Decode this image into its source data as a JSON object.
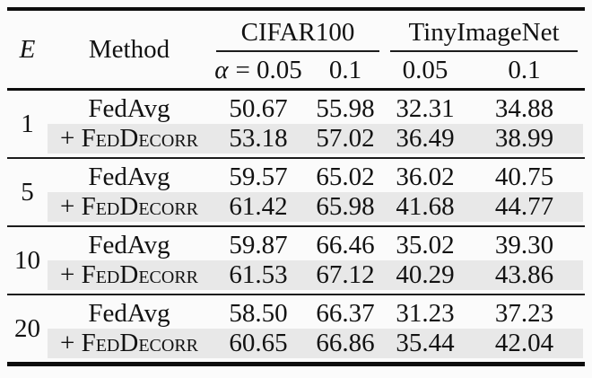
{
  "table": {
    "e_header": "E",
    "method_header": "Method",
    "group_headers": [
      "CIFAR100",
      "TinyImageNet"
    ],
    "col_subheaders": {
      "c1_symbol": "α",
      "c1_value": "= 0.05",
      "c2": "0.1",
      "c3": "0.05",
      "c4": "0.1"
    },
    "groups": [
      {
        "e": "1",
        "rows": [
          {
            "method": "FedAvg",
            "smallcaps": false,
            "highlight": false,
            "values": [
              "50.67",
              "55.98",
              "32.31",
              "34.88"
            ]
          },
          {
            "method": "+ FedDecorr",
            "smallcaps": true,
            "highlight": true,
            "values": [
              "53.18",
              "57.02",
              "36.49",
              "38.99"
            ]
          }
        ]
      },
      {
        "e": "5",
        "rows": [
          {
            "method": "FedAvg",
            "smallcaps": false,
            "highlight": false,
            "values": [
              "59.57",
              "65.02",
              "36.02",
              "40.75"
            ]
          },
          {
            "method": "+ FedDecorr",
            "smallcaps": true,
            "highlight": true,
            "values": [
              "61.42",
              "65.98",
              "41.68",
              "44.77"
            ]
          }
        ]
      },
      {
        "e": "10",
        "rows": [
          {
            "method": "FedAvg",
            "smallcaps": false,
            "highlight": false,
            "values": [
              "59.87",
              "66.46",
              "35.02",
              "39.30"
            ]
          },
          {
            "method": "+ FedDecorr",
            "smallcaps": true,
            "highlight": true,
            "values": [
              "61.53",
              "67.12",
              "40.29",
              "43.86"
            ]
          }
        ]
      },
      {
        "e": "20",
        "rows": [
          {
            "method": "FedAvg",
            "smallcaps": false,
            "highlight": false,
            "values": [
              "58.50",
              "66.37",
              "31.23",
              "37.23"
            ]
          },
          {
            "method": "+ FedDecorr",
            "smallcaps": true,
            "highlight": true,
            "values": [
              "60.65",
              "66.86",
              "35.44",
              "42.04"
            ]
          }
        ]
      }
    ]
  },
  "colors": {
    "background": "#fbfbfb",
    "text": "#121212",
    "rule_thick": "#0d0d0d",
    "rule_thin": "#1c1c1c",
    "highlight": "#e8e8e8"
  }
}
